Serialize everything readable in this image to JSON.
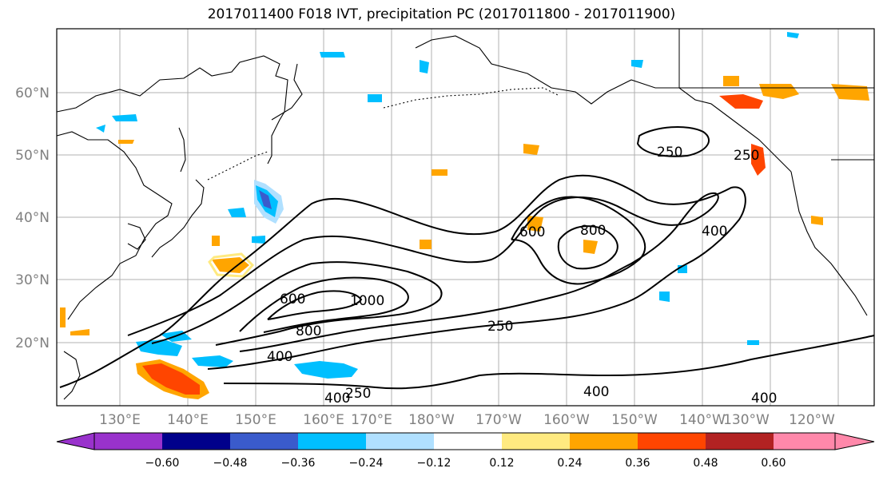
{
  "title": "2017011400 F018 IVT, precipitation PC (2017011800 - 2017011900)",
  "map": {
    "lon_labels": [
      "130°E",
      "140°E",
      "150°E",
      "160°E",
      "170°E",
      "180°W",
      "170°W",
      "160°W",
      "150°W",
      "140°W",
      "130°W",
      "120°W"
    ],
    "lat_labels": [
      "60°N",
      "50°N",
      "40°N",
      "30°N",
      "20°N"
    ],
    "contour_labels": [
      "250",
      "250",
      "250",
      "250",
      "400",
      "400",
      "400",
      "400",
      "400",
      "600",
      "600",
      "800",
      "800",
      "1000"
    ],
    "colors": {
      "coast": "#000000",
      "grid": "#b0b0b0",
      "tick_label": "#808080"
    }
  },
  "colorbar": {
    "tick_labels": [
      "−0.60",
      "−0.48",
      "−0.36",
      "−0.24",
      "−0.12",
      "0.12",
      "0.24",
      "0.36",
      "0.48",
      "0.60"
    ],
    "colors": [
      "#9932CC",
      "#00008B",
      "#3A5BCC",
      "#00BFFF",
      "#B0E0FF",
      "#FFFFFF",
      "#FFEA80",
      "#FFA500",
      "#FF4500",
      "#B22222",
      "#FF88AA"
    ]
  }
}
